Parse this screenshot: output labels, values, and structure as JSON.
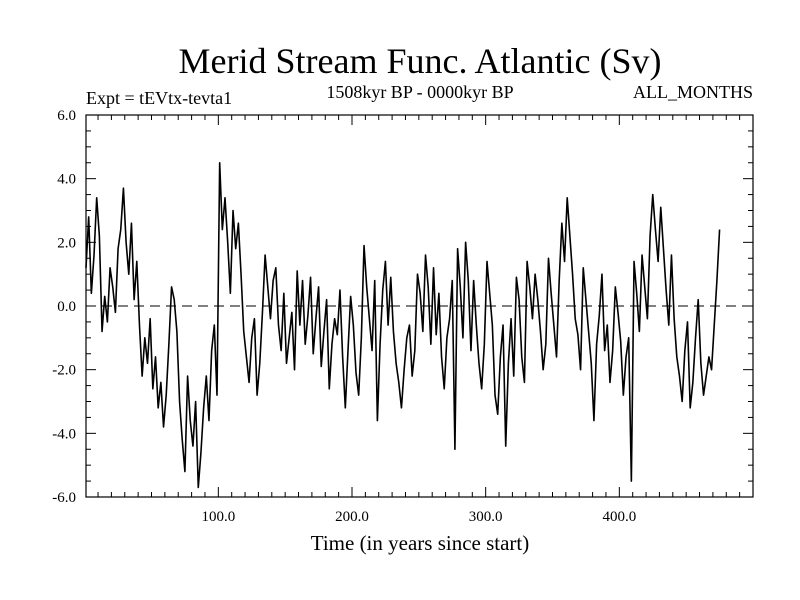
{
  "chart_data": {
    "type": "line",
    "title": "Merid Stream Func. Atlantic (Sv)",
    "annotations": {
      "left": "Expt = tEVtx-tevta1",
      "center": "1508kyr BP - 0000kyr BP",
      "right": "ALL_MONTHS"
    },
    "xlabel": "Time (in years since start)",
    "ylabel": "",
    "xlim": [
      1,
      500
    ],
    "ylim": [
      -6,
      6
    ],
    "x_ticks": [
      100,
      200,
      300,
      400
    ],
    "x_tick_labels": [
      "100.0",
      "200.0",
      "300.0",
      "400.0"
    ],
    "y_ticks": [
      6,
      4,
      2,
      0,
      -2,
      -4,
      -6
    ],
    "y_tick_labels": [
      "6.0",
      "4.0",
      "2.0",
      "0.0",
      "-2.0",
      "-4.0",
      "-6.0"
    ],
    "reference_line": {
      "y": 0,
      "style": "dashed"
    },
    "series": [
      {
        "name": "Merid Stream Func. Atlantic",
        "x_start": 1,
        "x_step": 2,
        "values": [
          1.2,
          2.8,
          0.4,
          1.6,
          3.4,
          2.2,
          -0.8,
          0.3,
          -0.5,
          1.2,
          0.6,
          -0.2,
          1.8,
          2.4,
          3.7,
          2.0,
          1.0,
          2.6,
          0.2,
          1.4,
          -0.6,
          -2.2,
          -1.0,
          -1.8,
          -0.4,
          -2.6,
          -1.6,
          -3.2,
          -2.4,
          -3.8,
          -2.8,
          -1.2,
          0.6,
          0.2,
          -0.8,
          -3.0,
          -4.2,
          -5.2,
          -2.2,
          -3.6,
          -4.4,
          -3.0,
          -5.7,
          -4.6,
          -3.2,
          -2.2,
          -3.6,
          -1.4,
          -0.6,
          -2.8,
          4.5,
          2.4,
          3.4,
          2.0,
          0.4,
          3.0,
          1.8,
          2.6,
          1.0,
          -0.8,
          -1.6,
          -2.4,
          -1.0,
          -0.4,
          -2.8,
          -1.8,
          -0.2,
          1.6,
          0.6,
          -0.4,
          0.8,
          1.2,
          -0.6,
          -1.4,
          0.4,
          -1.8,
          -1.0,
          -0.2,
          -2.0,
          1.1,
          -0.6,
          0.8,
          -1.2,
          -0.3,
          0.9,
          -1.5,
          -0.4,
          0.6,
          -1.9,
          -0.8,
          0.2,
          -2.6,
          -1.2,
          -0.4,
          -0.9,
          0.5,
          -1.6,
          -3.2,
          -1.4,
          0.3,
          -0.6,
          -2.1,
          -2.8,
          -1.0,
          1.9,
          0.6,
          -0.4,
          -1.4,
          0.8,
          -3.6,
          -1.2,
          0.5,
          1.4,
          -0.6,
          0.9,
          -0.8,
          -1.8,
          -2.4,
          -3.2,
          -2.0,
          -1.0,
          -0.6,
          -2.2,
          -1.4,
          1.0,
          0.4,
          -0.8,
          1.6,
          0.6,
          -1.2,
          1.2,
          -0.9,
          0.4,
          -1.6,
          -2.6,
          -1.0,
          -0.4,
          0.8,
          -4.5,
          1.8,
          0.6,
          -1.0,
          2.0,
          0.8,
          -1.4,
          0.8,
          -0.6,
          -1.8,
          -2.6,
          -1.2,
          1.4,
          0.4,
          -0.6,
          -2.8,
          -3.4,
          -1.6,
          -0.6,
          -4.4,
          -1.8,
          -0.4,
          -2.2,
          0.9,
          0.2,
          -1.6,
          -2.4,
          1.4,
          0.6,
          -0.4,
          1.0,
          0.2,
          -0.8,
          -2.0,
          -1.2,
          1.5,
          0.4,
          -0.6,
          -1.6,
          0.8,
          2.6,
          1.4,
          3.4,
          2.2,
          1.0,
          -0.4,
          -0.9,
          -2.0,
          1.2,
          0.2,
          -0.8,
          -1.8,
          -3.6,
          -1.2,
          -0.3,
          1.0,
          -1.4,
          -0.6,
          -2.4,
          -1.4,
          0.6,
          -0.2,
          -1.1,
          -2.8,
          -1.6,
          -1.0,
          -5.5,
          1.4,
          0.4,
          -0.8,
          1.6,
          0.6,
          -0.4,
          2.2,
          3.5,
          2.4,
          1.4,
          3.1,
          1.8,
          0.5,
          -0.6,
          1.6,
          -0.4,
          -1.6,
          -2.2,
          -3.0,
          -1.4,
          -0.5,
          -3.2,
          -2.4,
          -1.0,
          0.2,
          -1.8,
          -2.8,
          -2.2,
          -1.6,
          -2.0,
          -0.6,
          0.8,
          2.4
        ]
      }
    ]
  }
}
